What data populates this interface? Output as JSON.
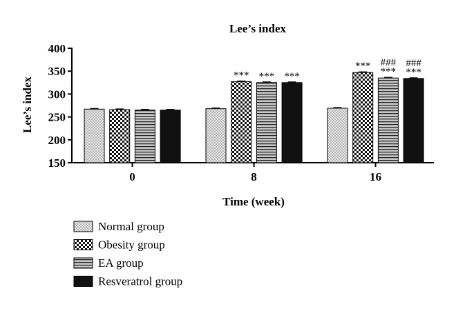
{
  "chart_data": {
    "type": "bar",
    "title": "Lee’s index",
    "xlabel": "Time (week)",
    "ylabel": "Lee’s index",
    "ylim": [
      150,
      400
    ],
    "yticks": [
      150,
      200,
      250,
      300,
      350,
      400
    ],
    "categories": [
      "0",
      "8",
      "16"
    ],
    "grid": false,
    "legend_position": "bottom-left",
    "series": [
      {
        "name": "Normal group",
        "values": [
          267,
          268,
          269
        ],
        "errors": [
          1.5,
          1.5,
          1.5
        ],
        "pattern": "dots"
      },
      {
        "name": "Obesity group",
        "values": [
          266,
          327,
          347
        ],
        "errors": [
          1.5,
          1.5,
          1.5
        ],
        "pattern": "checker"
      },
      {
        "name": "EA group",
        "values": [
          265,
          325,
          335
        ],
        "errors": [
          1.5,
          1.5,
          1.5
        ],
        "pattern": "hlines"
      },
      {
        "name": "Resveratrol group",
        "values": [
          265,
          325,
          334
        ],
        "errors": [
          1.5,
          1.5,
          1.5
        ],
        "pattern": "solid"
      }
    ],
    "annotations": [
      {
        "category": "8",
        "series": "Obesity group",
        "text": "***"
      },
      {
        "category": "8",
        "series": "EA group",
        "text": "***"
      },
      {
        "category": "8",
        "series": "Resveratrol group",
        "text": "***"
      },
      {
        "category": "16",
        "series": "Obesity group",
        "text": "***"
      },
      {
        "category": "16",
        "series": "EA group",
        "text": "***"
      },
      {
        "category": "16",
        "series": "Resveratrol group",
        "text": "***"
      },
      {
        "category": "16",
        "series": "EA group",
        "text": "###"
      },
      {
        "category": "16",
        "series": "Resveratrol group",
        "text": "###"
      }
    ],
    "colors": {
      "dots_fill": "#e6e6e6",
      "dots_dot": "#777777",
      "checker_fill": "#ffffff",
      "checker_ink": "#111111",
      "hlines_fill": "#c8c8c8",
      "hlines_line": "#222222",
      "solid_fill": "#111111",
      "axis": "#000000"
    }
  }
}
